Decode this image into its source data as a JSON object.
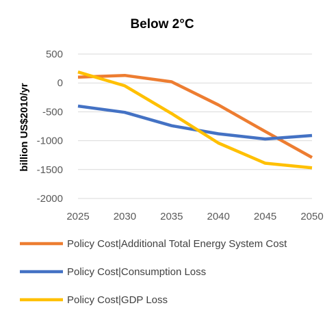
{
  "chart_data": {
    "type": "line",
    "title": "Below 2°C",
    "ylabel": "billion US$2010/yr",
    "xlabel": "",
    "x": [
      2025,
      2030,
      2035,
      2040,
      2045,
      2050
    ],
    "x_tick_labels": [
      "2025",
      "2030",
      "2035",
      "2040",
      "2045",
      "2050"
    ],
    "y_ticks": [
      500,
      0,
      -500,
      -1000,
      -1500,
      -2000
    ],
    "y_tick_labels": [
      "500",
      "0",
      "-500",
      "-1000",
      "-1500",
      "-2000"
    ],
    "ylim": [
      -2000,
      500
    ],
    "grid": true,
    "legend_position": "bottom",
    "series": [
      {
        "name": "Policy Cost|Additional Total Energy System Cost",
        "color": "#ED7D31",
        "values": [
          100,
          130,
          20,
          -380,
          -840,
          -1290
        ]
      },
      {
        "name": "Policy Cost|Consumption Loss",
        "color": "#4472C4",
        "values": [
          -400,
          -510,
          -740,
          -880,
          -970,
          -910
        ]
      },
      {
        "name": "Policy Cost|GDP Loss",
        "color": "#FFC000",
        "values": [
          190,
          -50,
          -530,
          -1040,
          -1390,
          -1470
        ]
      }
    ]
  }
}
